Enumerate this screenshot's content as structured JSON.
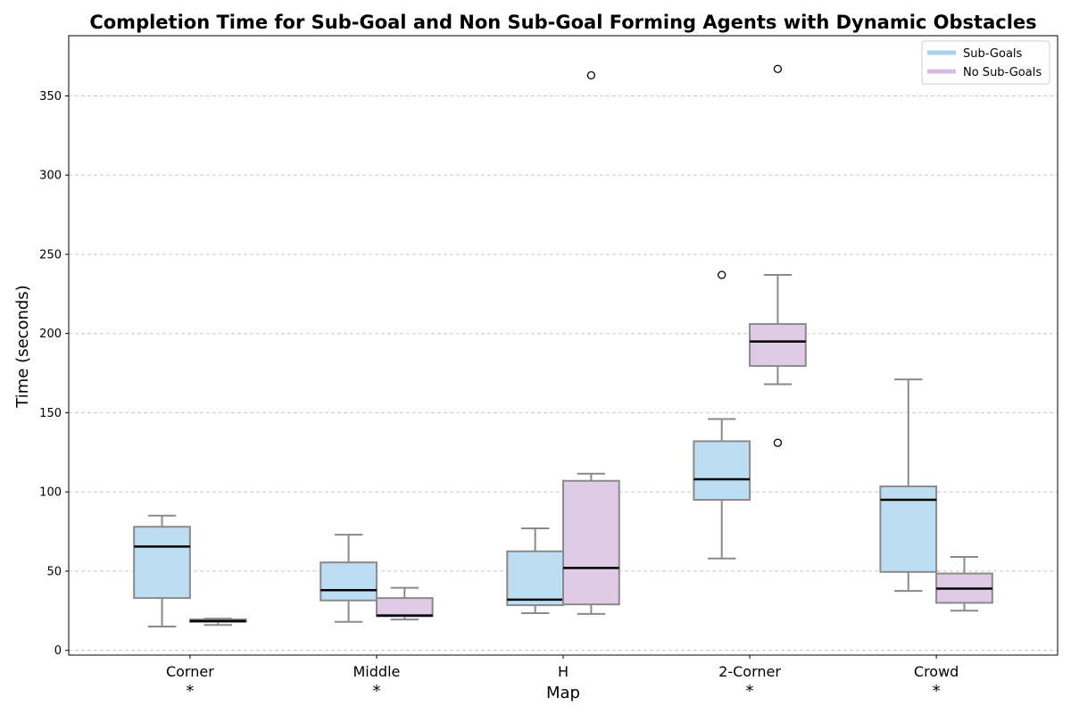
{
  "chart_data": {
    "type": "box",
    "title": "Completion Time for Sub-Goal and Non Sub-Goal Forming Agents with Dynamic Obstacles",
    "xlabel": "Map",
    "ylabel": "Time (seconds)",
    "ylim": [
      -3,
      388
    ],
    "yticks": [
      0,
      50,
      100,
      150,
      200,
      250,
      300,
      350
    ],
    "grid": "horizontal dashed",
    "legend_position": "top-right",
    "categories": [
      "Corner",
      "Middle",
      "H",
      "2-Corner",
      "Crowd"
    ],
    "significance_markers": [
      "*",
      "*",
      "",
      "*",
      "*"
    ],
    "series": [
      {
        "name": "Sub-Goals",
        "color": "#BDDEF2",
        "legend_color": "#A7D3F0",
        "boxes": [
          {
            "whisker_low": 15,
            "q1": 33,
            "median": 65.5,
            "q3": 78,
            "whisker_high": 85,
            "outliers": []
          },
          {
            "whisker_low": 18,
            "q1": 31.5,
            "median": 38,
            "q3": 55.5,
            "whisker_high": 73,
            "outliers": []
          },
          {
            "whisker_low": 23.5,
            "q1": 28.5,
            "median": 32,
            "q3": 62.5,
            "whisker_high": 77,
            "outliers": []
          },
          {
            "whisker_low": 58,
            "q1": 95,
            "median": 108,
            "q3": 132,
            "whisker_high": 146,
            "outliers": [
              237
            ]
          },
          {
            "whisker_low": 37.5,
            "q1": 49.5,
            "median": 95,
            "q3": 103.5,
            "whisker_high": 171,
            "outliers": []
          }
        ]
      },
      {
        "name": "No Sub-Goals",
        "color": "#E0CBE6",
        "legend_color": "#D5BCE2",
        "boxes": [
          {
            "whisker_low": 16,
            "q1": 18,
            "median": 18.5,
            "q3": 19.5,
            "whisker_high": 20,
            "outliers": []
          },
          {
            "whisker_low": 19.5,
            "q1": 21.5,
            "median": 22,
            "q3": 33,
            "whisker_high": 39.5,
            "outliers": []
          },
          {
            "whisker_low": 23,
            "q1": 29,
            "median": 52,
            "q3": 107,
            "whisker_high": 111.5,
            "outliers": [
              363
            ]
          },
          {
            "whisker_low": 168,
            "q1": 179.5,
            "median": 195,
            "q3": 206,
            "whisker_high": 237,
            "outliers": [
              131,
              367
            ]
          },
          {
            "whisker_low": 25,
            "q1": 30,
            "median": 39,
            "q3": 48.5,
            "whisker_high": 59,
            "outliers": []
          }
        ]
      }
    ]
  }
}
